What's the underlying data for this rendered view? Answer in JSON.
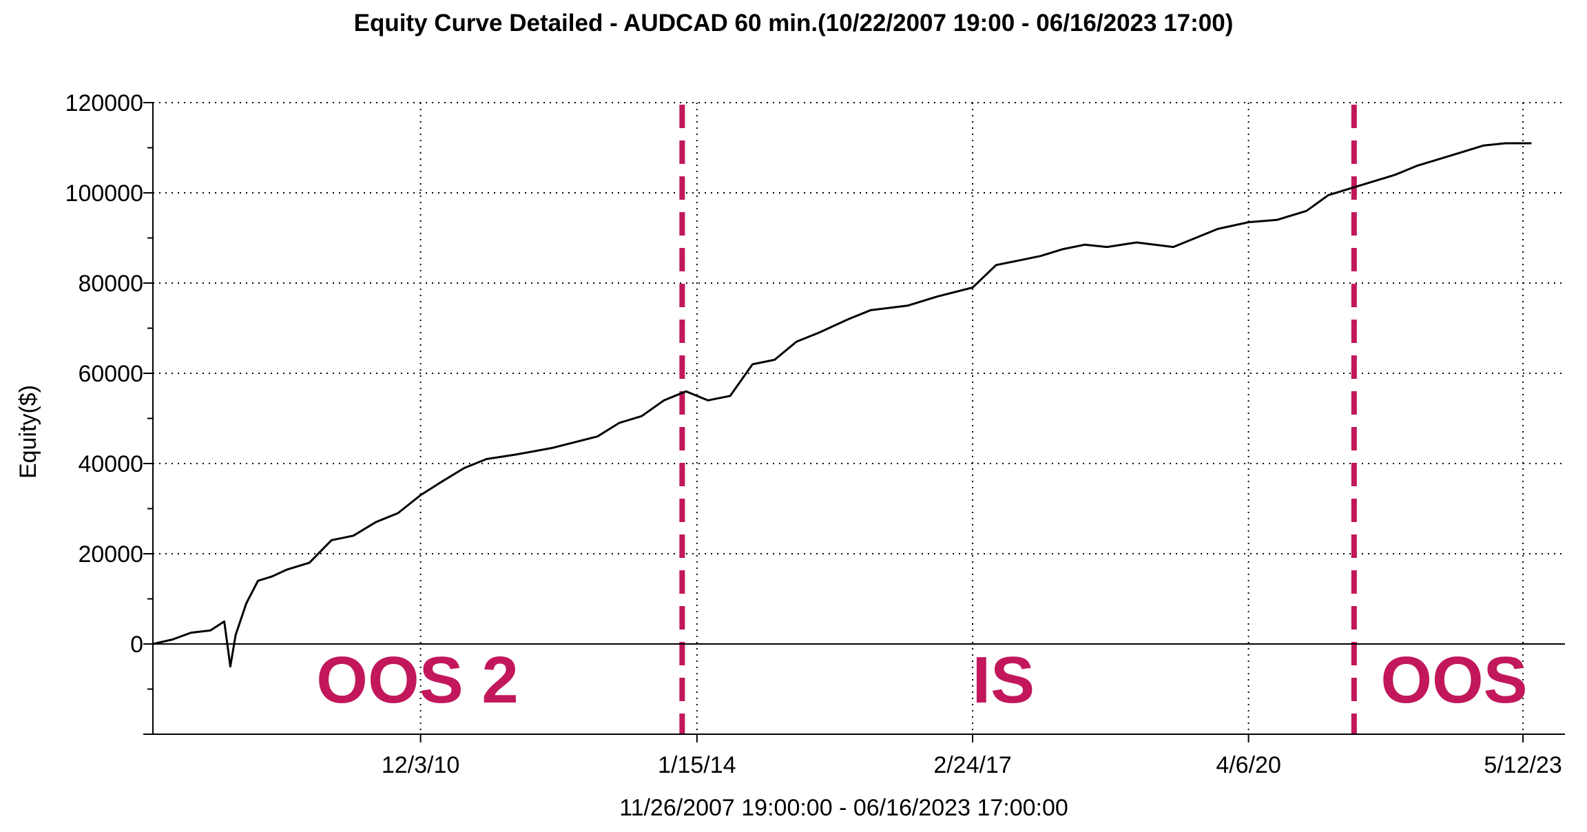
{
  "chart_data": {
    "type": "line",
    "title": "Equity Curve Detailed - AUDCAD 60 min.(10/22/2007 19:00 - 06/16/2023 17:00)",
    "xlabel": "11/26/2007 19:00:00 - 06/16/2023 17:00:00",
    "ylabel": "Equity($)",
    "xlim": [
      "2007-11-26",
      "2023-11-01"
    ],
    "ylim": [
      -20000,
      120000
    ],
    "yticks": [
      0,
      20000,
      40000,
      60000,
      80000,
      100000,
      120000
    ],
    "ytick_labels": [
      "0",
      "20000",
      "40000",
      "60000",
      "80000",
      "100000",
      "120000"
    ],
    "xticks": [
      "2010-12-03",
      "2014-01-15",
      "2017-02-24",
      "2020-04-06",
      "2023-05-12"
    ],
    "xtick_labels": [
      "12/3/10",
      "1/15/14",
      "2/24/17",
      "4/6/20",
      "5/12/23"
    ],
    "grid": true,
    "series": [
      {
        "x": [
          "2007-11-26",
          "2008-02-15",
          "2008-05-01",
          "2008-07-20",
          "2008-09-15",
          "2008-10-10",
          "2008-11-01",
          "2008-12-15",
          "2009-02-01",
          "2009-04-01",
          "2009-06-01",
          "2009-09-01",
          "2009-12-01",
          "2010-03-01",
          "2010-06-01",
          "2010-09-01",
          "2010-12-03",
          "2011-03-01",
          "2011-06-01",
          "2011-09-01",
          "2012-01-01",
          "2012-06-01",
          "2012-12-01",
          "2013-03-01",
          "2013-06-01",
          "2013-09-01",
          "2013-12-01",
          "2014-03-01",
          "2014-06-01",
          "2014-09-01",
          "2014-12-01",
          "2015-03-01",
          "2015-06-01",
          "2015-10-01",
          "2016-01-01",
          "2016-06-01",
          "2016-10-01",
          "2017-02-24",
          "2017-06-01",
          "2017-09-01",
          "2017-12-01",
          "2018-03-01",
          "2018-06-01",
          "2018-09-01",
          "2019-01-01",
          "2019-06-01",
          "2019-12-01",
          "2020-04-06",
          "2020-08-01",
          "2020-12-01",
          "2021-03-01",
          "2021-06-01",
          "2021-09-01",
          "2021-12-01",
          "2022-03-01",
          "2022-06-01",
          "2022-09-01",
          "2022-12-01",
          "2023-03-01",
          "2023-06-16"
        ],
        "values": [
          0,
          1000,
          2500,
          3000,
          5000,
          -5000,
          2000,
          9000,
          14000,
          15000,
          16500,
          18000,
          23000,
          24000,
          27000,
          29000,
          33000,
          36000,
          39000,
          41000,
          42000,
          43500,
          46000,
          49000,
          50500,
          54000,
          56000,
          54000,
          55000,
          62000,
          63000,
          67000,
          69000,
          72000,
          74000,
          75000,
          77000,
          79000,
          84000,
          85000,
          86000,
          87500,
          88500,
          88000,
          89000,
          88000,
          92000,
          93500,
          94000,
          96000,
          99500,
          101000,
          102500,
          104000,
          106000,
          107500,
          109000,
          110500,
          111000,
          111000
        ]
      }
    ],
    "markers": [
      {
        "x": "2013-11-15",
        "color": "#C2185B"
      },
      {
        "x": "2021-06-15",
        "color": "#C2185B"
      }
    ],
    "zones": [
      {
        "label": "OOS 2",
        "center_x": "2010-11-20"
      },
      {
        "label": "IS",
        "center_x": "2017-07-01"
      },
      {
        "label": "OOS",
        "center_x": "2022-08-01"
      }
    ],
    "colors": {
      "line": "#000000",
      "marker": "#C2185B",
      "zone_text": "#C2185B"
    }
  }
}
